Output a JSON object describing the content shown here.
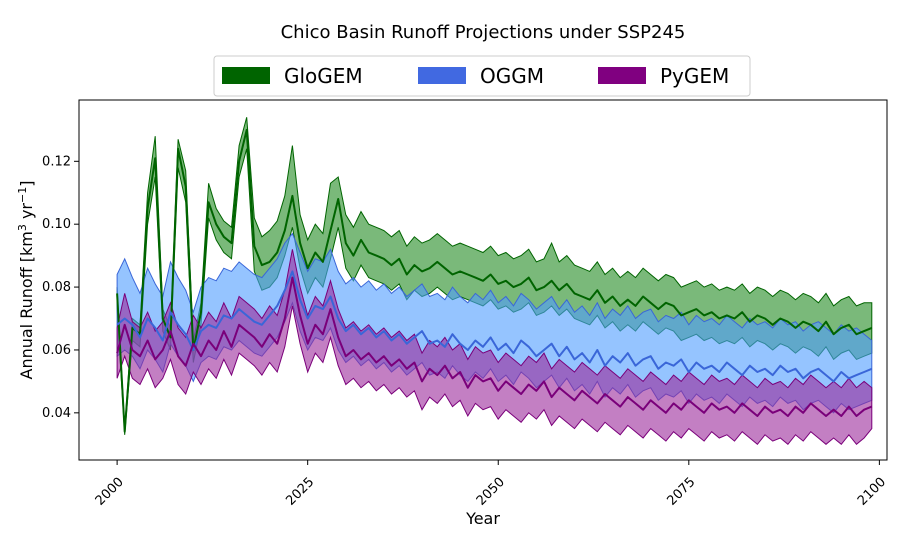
{
  "chart_data": {
    "type": "area",
    "title": "Chico Basin Runoff Projections under SSP245",
    "xlabel": "Year",
    "ylabel": "Annual Runoff [km",
    "ylabel_sup1": "3",
    "ylabel_mid": " yr",
    "ylabel_sup2": "−1",
    "ylabel_end": "]",
    "xlim": [
      1995,
      2101
    ],
    "ylim": [
      0.025,
      0.1395
    ],
    "x_ticks": [
      2000,
      2025,
      2050,
      2075,
      2100
    ],
    "y_ticks": [
      0.04,
      0.06,
      0.08,
      0.1,
      0.12
    ],
    "y_tick_labels": [
      "0.04",
      "0.06",
      "0.08",
      "0.10",
      "0.12"
    ],
    "grid": false,
    "legend_position": "top-center",
    "x": [
      2000,
      2001,
      2002,
      2003,
      2004,
      2005,
      2006,
      2007,
      2008,
      2009,
      2010,
      2011,
      2012,
      2013,
      2014,
      2015,
      2016,
      2017,
      2018,
      2019,
      2020,
      2021,
      2022,
      2023,
      2024,
      2025,
      2026,
      2027,
      2028,
      2029,
      2030,
      2031,
      2032,
      2033,
      2034,
      2035,
      2036,
      2037,
      2038,
      2039,
      2040,
      2041,
      2042,
      2043,
      2044,
      2045,
      2046,
      2047,
      2048,
      2049,
      2050,
      2051,
      2052,
      2053,
      2054,
      2055,
      2056,
      2057,
      2058,
      2059,
      2060,
      2061,
      2062,
      2063,
      2064,
      2065,
      2066,
      2067,
      2068,
      2069,
      2070,
      2071,
      2072,
      2073,
      2074,
      2075,
      2076,
      2077,
      2078,
      2079,
      2080,
      2081,
      2082,
      2083,
      2084,
      2085,
      2086,
      2087,
      2088,
      2089,
      2090,
      2091,
      2092,
      2093,
      2094,
      2095,
      2096,
      2097,
      2098,
      2099
    ],
    "series": [
      {
        "name": "GloGEM",
        "color": "#006400",
        "fill": "#228b22",
        "mean": [
          0.078,
          0.034,
          0.067,
          0.065,
          0.105,
          0.121,
          0.07,
          0.064,
          0.124,
          0.112,
          0.06,
          0.072,
          0.107,
          0.1,
          0.096,
          0.094,
          0.12,
          0.13,
          0.093,
          0.087,
          0.088,
          0.091,
          0.098,
          0.109,
          0.094,
          0.086,
          0.091,
          0.088,
          0.098,
          0.108,
          0.094,
          0.09,
          0.095,
          0.091,
          0.09,
          0.089,
          0.087,
          0.089,
          0.084,
          0.087,
          0.085,
          0.086,
          0.088,
          0.086,
          0.084,
          0.085,
          0.084,
          0.083,
          0.082,
          0.084,
          0.081,
          0.082,
          0.08,
          0.081,
          0.083,
          0.079,
          0.08,
          0.082,
          0.079,
          0.081,
          0.078,
          0.077,
          0.076,
          0.079,
          0.075,
          0.077,
          0.074,
          0.076,
          0.074,
          0.077,
          0.075,
          0.073,
          0.075,
          0.074,
          0.071,
          0.072,
          0.073,
          0.071,
          0.072,
          0.07,
          0.071,
          0.07,
          0.072,
          0.069,
          0.071,
          0.07,
          0.068,
          0.07,
          0.069,
          0.067,
          0.069,
          0.068,
          0.066,
          0.069,
          0.065,
          0.067,
          0.068,
          0.065,
          0.066,
          0.067
        ],
        "lower": [
          0.073,
          0.033,
          0.063,
          0.061,
          0.1,
          0.115,
          0.066,
          0.06,
          0.118,
          0.107,
          0.056,
          0.068,
          0.102,
          0.095,
          0.091,
          0.089,
          0.115,
          0.124,
          0.085,
          0.079,
          0.08,
          0.083,
          0.09,
          0.099,
          0.086,
          0.078,
          0.083,
          0.08,
          0.089,
          0.099,
          0.086,
          0.082,
          0.087,
          0.083,
          0.082,
          0.081,
          0.079,
          0.081,
          0.076,
          0.079,
          0.077,
          0.078,
          0.08,
          0.078,
          0.076,
          0.077,
          0.076,
          0.075,
          0.074,
          0.076,
          0.073,
          0.074,
          0.072,
          0.073,
          0.075,
          0.071,
          0.072,
          0.074,
          0.071,
          0.073,
          0.07,
          0.069,
          0.068,
          0.071,
          0.067,
          0.069,
          0.066,
          0.068,
          0.066,
          0.069,
          0.067,
          0.065,
          0.067,
          0.066,
          0.063,
          0.064,
          0.065,
          0.063,
          0.064,
          0.062,
          0.063,
          0.062,
          0.064,
          0.061,
          0.063,
          0.062,
          0.06,
          0.062,
          0.061,
          0.059,
          0.061,
          0.06,
          0.058,
          0.061,
          0.057,
          0.059,
          0.06,
          0.057,
          0.058,
          0.059
        ],
        "upper": [
          0.08,
          0.035,
          0.07,
          0.068,
          0.11,
          0.128,
          0.073,
          0.067,
          0.127,
          0.117,
          0.063,
          0.075,
          0.113,
          0.105,
          0.101,
          0.099,
          0.125,
          0.134,
          0.102,
          0.096,
          0.098,
          0.101,
          0.109,
          0.125,
          0.103,
          0.095,
          0.1,
          0.097,
          0.113,
          0.115,
          0.103,
          0.099,
          0.104,
          0.1,
          0.099,
          0.098,
          0.096,
          0.098,
          0.093,
          0.096,
          0.094,
          0.095,
          0.097,
          0.095,
          0.093,
          0.094,
          0.093,
          0.092,
          0.091,
          0.093,
          0.09,
          0.091,
          0.089,
          0.09,
          0.092,
          0.088,
          0.089,
          0.094,
          0.088,
          0.09,
          0.087,
          0.086,
          0.085,
          0.088,
          0.084,
          0.086,
          0.083,
          0.085,
          0.083,
          0.086,
          0.084,
          0.082,
          0.084,
          0.083,
          0.08,
          0.081,
          0.082,
          0.08,
          0.081,
          0.079,
          0.08,
          0.079,
          0.081,
          0.078,
          0.08,
          0.079,
          0.077,
          0.079,
          0.078,
          0.076,
          0.078,
          0.077,
          0.075,
          0.078,
          0.074,
          0.076,
          0.077,
          0.074,
          0.075,
          0.075
        ]
      },
      {
        "name": "OGGM",
        "color": "#3a66d8",
        "fill": "#4f9cff",
        "mean": [
          0.068,
          0.07,
          0.068,
          0.064,
          0.07,
          0.067,
          0.063,
          0.072,
          0.068,
          0.065,
          0.06,
          0.066,
          0.068,
          0.067,
          0.071,
          0.07,
          0.073,
          0.071,
          0.069,
          0.068,
          0.071,
          0.074,
          0.079,
          0.085,
          0.076,
          0.07,
          0.074,
          0.073,
          0.077,
          0.07,
          0.066,
          0.068,
          0.065,
          0.067,
          0.064,
          0.066,
          0.063,
          0.065,
          0.062,
          0.064,
          0.066,
          0.062,
          0.063,
          0.061,
          0.065,
          0.062,
          0.06,
          0.063,
          0.061,
          0.064,
          0.06,
          0.062,
          0.059,
          0.063,
          0.061,
          0.058,
          0.06,
          0.062,
          0.058,
          0.061,
          0.057,
          0.059,
          0.056,
          0.06,
          0.055,
          0.058,
          0.056,
          0.059,
          0.055,
          0.057,
          0.058,
          0.054,
          0.056,
          0.055,
          0.057,
          0.053,
          0.056,
          0.054,
          0.055,
          0.053,
          0.056,
          0.054,
          0.052,
          0.055,
          0.053,
          0.054,
          0.052,
          0.055,
          0.053,
          0.054,
          0.051,
          0.053,
          0.054,
          0.052,
          0.05,
          0.053,
          0.051,
          0.052,
          0.053,
          0.054
        ],
        "lower": [
          0.058,
          0.06,
          0.058,
          0.054,
          0.06,
          0.057,
          0.053,
          0.062,
          0.058,
          0.055,
          0.05,
          0.056,
          0.058,
          0.057,
          0.061,
          0.06,
          0.063,
          0.061,
          0.059,
          0.058,
          0.061,
          0.064,
          0.069,
          0.075,
          0.066,
          0.06,
          0.064,
          0.063,
          0.067,
          0.06,
          0.056,
          0.058,
          0.055,
          0.057,
          0.054,
          0.056,
          0.053,
          0.055,
          0.052,
          0.054,
          0.056,
          0.052,
          0.053,
          0.051,
          0.055,
          0.052,
          0.05,
          0.053,
          0.051,
          0.054,
          0.05,
          0.052,
          0.049,
          0.053,
          0.051,
          0.048,
          0.05,
          0.052,
          0.048,
          0.051,
          0.047,
          0.049,
          0.046,
          0.05,
          0.045,
          0.048,
          0.046,
          0.049,
          0.045,
          0.047,
          0.048,
          0.044,
          0.046,
          0.045,
          0.047,
          0.043,
          0.046,
          0.044,
          0.045,
          0.043,
          0.046,
          0.044,
          0.042,
          0.045,
          0.043,
          0.044,
          0.042,
          0.045,
          0.043,
          0.044,
          0.041,
          0.043,
          0.044,
          0.042,
          0.04,
          0.043,
          0.041,
          0.042,
          0.043,
          0.044
        ],
        "upper": [
          0.084,
          0.089,
          0.083,
          0.078,
          0.086,
          0.081,
          0.077,
          0.088,
          0.083,
          0.079,
          0.072,
          0.08,
          0.083,
          0.082,
          0.086,
          0.085,
          0.088,
          0.086,
          0.084,
          0.083,
          0.086,
          0.089,
          0.094,
          0.097,
          0.091,
          0.085,
          0.089,
          0.088,
          0.092,
          0.085,
          0.081,
          0.083,
          0.08,
          0.082,
          0.079,
          0.081,
          0.078,
          0.08,
          0.077,
          0.079,
          0.081,
          0.077,
          0.078,
          0.076,
          0.08,
          0.077,
          0.075,
          0.078,
          0.076,
          0.079,
          0.075,
          0.077,
          0.074,
          0.078,
          0.076,
          0.073,
          0.075,
          0.077,
          0.073,
          0.076,
          0.072,
          0.074,
          0.071,
          0.075,
          0.07,
          0.073,
          0.071,
          0.074,
          0.07,
          0.072,
          0.073,
          0.069,
          0.071,
          0.07,
          0.072,
          0.068,
          0.071,
          0.069,
          0.07,
          0.068,
          0.071,
          0.069,
          0.067,
          0.07,
          0.068,
          0.069,
          0.067,
          0.07,
          0.068,
          0.069,
          0.066,
          0.068,
          0.069,
          0.067,
          0.065,
          0.068,
          0.066,
          0.067,
          0.065,
          0.063
        ]
      },
      {
        "name": "PyGEM",
        "color": "#7a007a",
        "fill": "#9b2a9b",
        "mean": [
          0.059,
          0.068,
          0.06,
          0.058,
          0.063,
          0.057,
          0.06,
          0.066,
          0.058,
          0.055,
          0.062,
          0.058,
          0.063,
          0.06,
          0.066,
          0.061,
          0.068,
          0.066,
          0.064,
          0.061,
          0.065,
          0.062,
          0.07,
          0.083,
          0.071,
          0.062,
          0.068,
          0.065,
          0.073,
          0.064,
          0.058,
          0.06,
          0.057,
          0.059,
          0.056,
          0.058,
          0.055,
          0.057,
          0.054,
          0.056,
          0.05,
          0.054,
          0.052,
          0.055,
          0.051,
          0.053,
          0.048,
          0.052,
          0.05,
          0.051,
          0.047,
          0.05,
          0.048,
          0.046,
          0.049,
          0.047,
          0.05,
          0.045,
          0.048,
          0.046,
          0.044,
          0.047,
          0.045,
          0.043,
          0.046,
          0.044,
          0.042,
          0.045,
          0.043,
          0.041,
          0.044,
          0.042,
          0.04,
          0.043,
          0.041,
          0.044,
          0.042,
          0.04,
          0.043,
          0.041,
          0.042,
          0.04,
          0.043,
          0.041,
          0.039,
          0.042,
          0.04,
          0.041,
          0.039,
          0.042,
          0.04,
          0.043,
          0.041,
          0.039,
          0.041,
          0.039,
          0.042,
          0.039,
          0.041,
          0.042
        ],
        "lower": [
          0.051,
          0.058,
          0.051,
          0.049,
          0.054,
          0.048,
          0.051,
          0.057,
          0.049,
          0.046,
          0.053,
          0.049,
          0.054,
          0.051,
          0.057,
          0.052,
          0.059,
          0.057,
          0.055,
          0.052,
          0.056,
          0.053,
          0.061,
          0.074,
          0.062,
          0.053,
          0.059,
          0.056,
          0.064,
          0.055,
          0.049,
          0.051,
          0.048,
          0.05,
          0.047,
          0.049,
          0.046,
          0.048,
          0.045,
          0.047,
          0.041,
          0.045,
          0.043,
          0.046,
          0.042,
          0.044,
          0.039,
          0.043,
          0.041,
          0.042,
          0.038,
          0.041,
          0.039,
          0.037,
          0.04,
          0.038,
          0.041,
          0.036,
          0.039,
          0.037,
          0.035,
          0.038,
          0.036,
          0.034,
          0.037,
          0.035,
          0.033,
          0.036,
          0.034,
          0.032,
          0.035,
          0.033,
          0.031,
          0.034,
          0.032,
          0.035,
          0.033,
          0.031,
          0.034,
          0.032,
          0.033,
          0.031,
          0.034,
          0.032,
          0.03,
          0.033,
          0.031,
          0.032,
          0.03,
          0.033,
          0.031,
          0.034,
          0.032,
          0.03,
          0.032,
          0.03,
          0.033,
          0.03,
          0.032,
          0.035
        ],
        "upper": [
          0.067,
          0.078,
          0.069,
          0.067,
          0.072,
          0.066,
          0.069,
          0.075,
          0.067,
          0.064,
          0.071,
          0.067,
          0.072,
          0.069,
          0.075,
          0.07,
          0.077,
          0.075,
          0.073,
          0.07,
          0.074,
          0.071,
          0.079,
          0.092,
          0.08,
          0.071,
          0.077,
          0.074,
          0.082,
          0.073,
          0.067,
          0.069,
          0.066,
          0.068,
          0.065,
          0.067,
          0.064,
          0.066,
          0.063,
          0.065,
          0.059,
          0.063,
          0.061,
          0.064,
          0.06,
          0.062,
          0.057,
          0.061,
          0.059,
          0.06,
          0.056,
          0.059,
          0.057,
          0.055,
          0.058,
          0.056,
          0.059,
          0.054,
          0.057,
          0.055,
          0.053,
          0.056,
          0.054,
          0.052,
          0.055,
          0.053,
          0.051,
          0.054,
          0.052,
          0.05,
          0.053,
          0.051,
          0.049,
          0.052,
          0.05,
          0.053,
          0.051,
          0.049,
          0.052,
          0.05,
          0.051,
          0.049,
          0.052,
          0.05,
          0.048,
          0.051,
          0.049,
          0.05,
          0.048,
          0.051,
          0.049,
          0.052,
          0.05,
          0.048,
          0.05,
          0.048,
          0.051,
          0.048,
          0.05,
          0.048
        ]
      }
    ]
  }
}
